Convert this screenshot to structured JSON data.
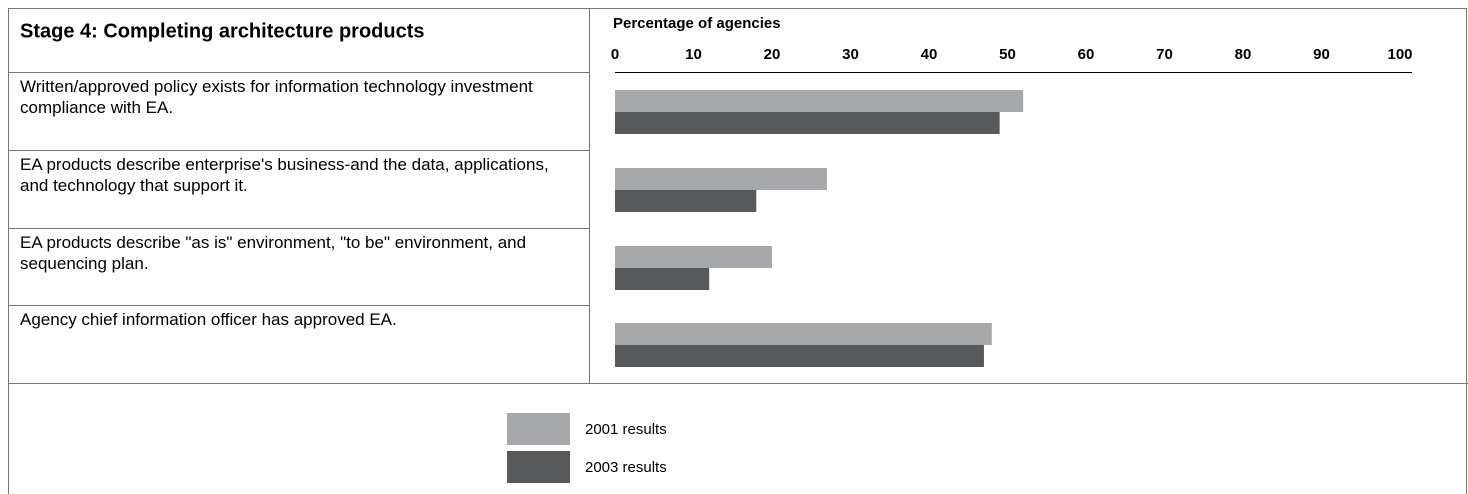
{
  "chart_data": {
    "type": "bar",
    "orientation": "horizontal",
    "title": "Stage 4: Completing architecture products",
    "x_label": "Percentage of agencies",
    "categories": [
      "Written/approved policy exists for information technology investment compliance with EA.",
      "EA products describe enterprise's business-and the data, applications, and technology that support it.",
      "EA products describe \"as is\" environment, \"to be\" environment, and sequencing plan.",
      "Agency chief information officer has approved EA."
    ],
    "series": [
      {
        "name": "2001 results",
        "color": "#a7a8aa",
        "values": [
          52,
          27,
          20,
          48
        ]
      },
      {
        "name": "2003 results",
        "color": "#58595b",
        "values": [
          49,
          18,
          12,
          47
        ]
      }
    ],
    "xlim": [
      0,
      100
    ],
    "xticks": [
      0,
      10,
      20,
      30,
      40,
      50,
      60,
      70,
      80,
      90,
      100
    ]
  }
}
